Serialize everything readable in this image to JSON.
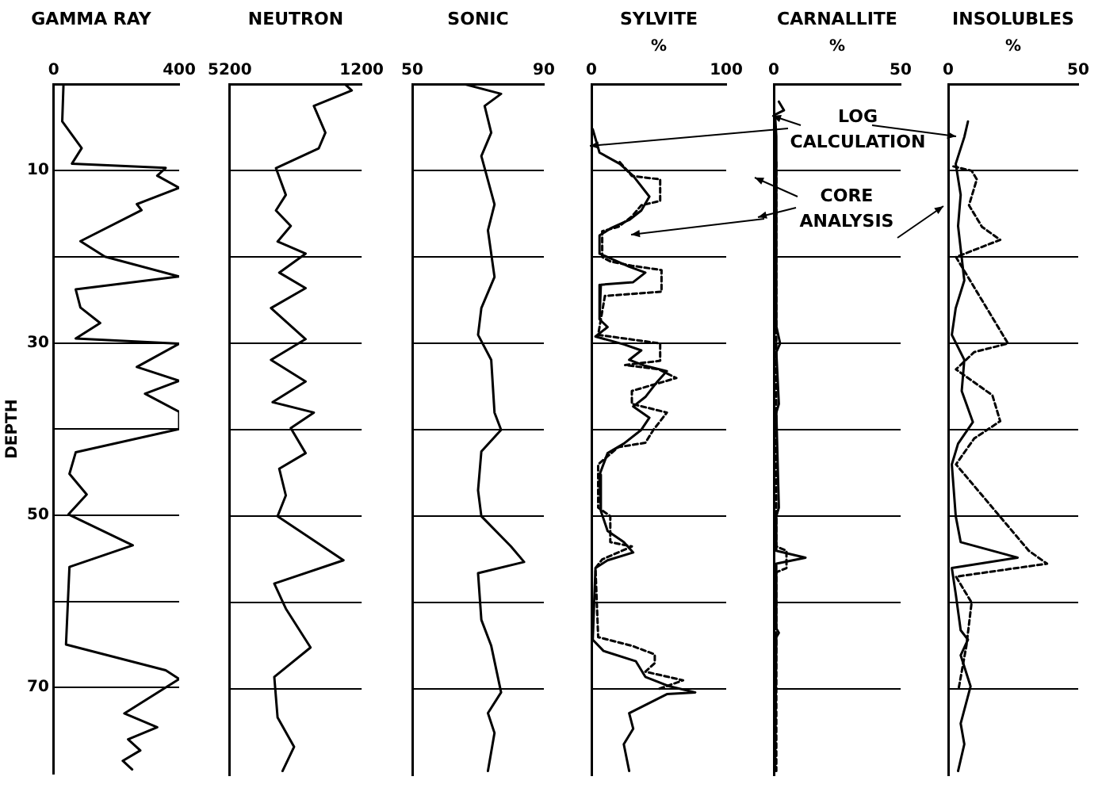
{
  "chart_data": [
    {
      "type": "line",
      "orientation": "horizontal",
      "title": "GAMMA RAY",
      "ylabel": "DEPTH",
      "xlim": [
        0,
        400
      ],
      "xticks": [
        0,
        400
      ],
      "ylim": [
        80,
        0
      ],
      "yticks": [
        10,
        {
          "value": 20,
          "label": null
        },
        30,
        {
          "value": 40,
          "label": null
        },
        50,
        {
          "value": 60,
          "label": null
        },
        70
      ],
      "grid": "y",
      "series": [
        {
          "color": "#000000",
          "x": [
            0,
            4.3,
            7.4,
            9.2,
            9.7,
            10.6,
            12,
            13.9,
            14.6,
            18.2,
            20,
            22.3,
            23.8,
            25.9,
            27.7,
            29.5,
            30.1,
            32.8,
            34.4,
            35.9,
            38,
            40,
            42.7,
            45.2,
            47.6,
            49.9,
            53.5,
            56,
            65,
            68,
            69,
            73,
            74.6,
            76,
            77.3,
            78.5,
            79.5
          ],
          "values": [
            31,
            27,
            89,
            58,
            357,
            330,
            400,
            265,
            280,
            85,
            163,
            400,
            70,
            85,
            148,
            70,
            400,
            265,
            400,
            291,
            400,
            400,
            70,
            50,
            105,
            47,
            252,
            50,
            39,
            357,
            400,
            225,
            330,
            237,
            276,
            220,
            250
          ]
        }
      ]
    },
    {
      "type": "line",
      "orientation": "horizontal",
      "title": "NEUTRON",
      "xlim": [
        5200,
        1200
      ],
      "xticks": [
        5200,
        1200
      ],
      "ylim": [
        80,
        0
      ],
      "yticks": [
        10,
        {
          "value": 20,
          "label": null
        },
        30,
        {
          "value": 40,
          "label": null
        },
        50,
        {
          "value": 60,
          "label": null
        },
        70
      ],
      "grid": "y",
      "tick_labels": "x",
      "series": [
        {
          "color": "#000000",
          "x": [
            0,
            0.7,
            2.5,
            5.6,
            7.4,
            9.7,
            12.8,
            14.6,
            16.4,
            18.2,
            19.6,
            21.8,
            23.6,
            25.9,
            29.5,
            31.9,
            34.4,
            36.8,
            38,
            39.8,
            42.7,
            44.5,
            47.6,
            50,
            55.1,
            57.8,
            60.7,
            65.2,
            68.6,
            73.3,
            76.7,
            79.5
          ],
          "values": [
            1700,
            1500,
            2650,
            2300,
            2500,
            3800,
            3500,
            3800,
            3350,
            3750,
            2900,
            3700,
            2900,
            3950,
            2900,
            3950,
            2900,
            3900,
            2650,
            3350,
            2900,
            3700,
            3500,
            3750,
            1750,
            3850,
            3500,
            2750,
            3850,
            3750,
            3250,
            3600
          ]
        }
      ]
    },
    {
      "type": "line",
      "orientation": "horizontal",
      "title": "SONIC",
      "xlim": [
        50,
        90
      ],
      "xticks": [
        50,
        90
      ],
      "ylim": [
        80,
        0
      ],
      "yticks": [
        10,
        {
          "value": 20,
          "label": null
        },
        30,
        {
          "value": 40,
          "label": null
        },
        50,
        {
          "value": 60,
          "label": null
        },
        70
      ],
      "grid": "y",
      "tick_labels": "x",
      "series": [
        {
          "color": "#000000",
          "x": [
            0,
            1.1,
            2.5,
            5.6,
            8.3,
            13.9,
            16.9,
            22.3,
            25.9,
            29,
            31.9,
            38,
            40,
            42.5,
            47,
            50,
            53.5,
            55.3,
            56.6,
            62,
            65,
            70.4,
            72.8,
            75.1,
            79.5
          ],
          "values": [
            66,
            77,
            72,
            74,
            71,
            75,
            73,
            75,
            71,
            70,
            74,
            75,
            77,
            71,
            70,
            71,
            80,
            84,
            70,
            71,
            74,
            77,
            73,
            75,
            73
          ]
        }
      ]
    },
    {
      "type": "line",
      "orientation": "horizontal",
      "title": "SYLVITE",
      "xlabel": "%",
      "xlim": [
        0,
        100
      ],
      "xticks": [
        0,
        100
      ],
      "ylim": [
        80,
        0
      ],
      "yticks": [
        10,
        {
          "value": 20,
          "label": null
        },
        30,
        {
          "value": 40,
          "label": null
        },
        50,
        {
          "value": 60,
          "label": null
        },
        70
      ],
      "grid": "y",
      "tick_labels": "x",
      "series": [
        {
          "color": "#000000",
          "x": [
            5.2,
            7.9,
            9.2,
            10.6,
            13,
            14.6,
            15.7,
            16.6,
            17.5,
            19.6,
            21.1,
            21.8,
            22.9,
            23.2,
            27.2,
            28.1,
            29.2,
            30.1,
            30.8,
            31.9,
            32.6,
            33.2,
            34.4,
            36.2,
            37.3,
            38.6,
            40,
            41.6,
            42.7,
            45.2,
            49.4,
            51.7,
            53,
            54.2,
            55.1,
            56,
            64.3,
            65.6,
            66.8,
            68.6,
            69.7,
            70.4,
            70.6,
            72.8,
            74.6,
            76.4,
            79.5
          ],
          "values": [
            1,
            6,
            21,
            31,
            43,
            37,
            28,
            15,
            6,
            6,
            28,
            40,
            31,
            7,
            6,
            12,
            3,
            24,
            37,
            28,
            40,
            56,
            49,
            40,
            31,
            43,
            37,
            24,
            12,
            6,
            7,
            12,
            24,
            31,
            12,
            3,
            1,
            9,
            33,
            40,
            58,
            77,
            56,
            28,
            31,
            24,
            28
          ]
        },
        {
          "color": "#000000",
          "line_style": "dashed",
          "x": [
            9,
            10.6,
            11,
            13.5,
            14,
            15.3,
            16.5,
            17,
            20,
            20.5,
            21,
            21.5,
            24,
            24.5,
            29,
            30,
            32,
            32.5,
            33,
            34,
            35.5,
            37,
            38,
            40,
            41.5,
            42,
            44,
            49,
            50,
            53,
            53.5,
            55,
            56,
            64,
            65,
            66,
            67,
            68,
            69,
            70
          ],
          "values": [
            21,
            30,
            51,
            51,
            37,
            30,
            20,
            8,
            8,
            14,
            30,
            52,
            52,
            10,
            5,
            51,
            51,
            25,
            50,
            63,
            30,
            30,
            56,
            46,
            40,
            20,
            5,
            5,
            14,
            14,
            30,
            8,
            3,
            5,
            30,
            47,
            47,
            40,
            68,
            50
          ]
        }
      ]
    },
    {
      "type": "line",
      "orientation": "horizontal",
      "title": "CARNALLITE",
      "xlabel": "%",
      "xlim": [
        0,
        50
      ],
      "xticks": [
        0,
        50
      ],
      "ylim": [
        80,
        0
      ],
      "yticks": [
        10,
        {
          "value": 20,
          "label": null
        },
        30,
        {
          "value": 40,
          "label": null
        },
        50,
        {
          "value": 60,
          "label": null
        },
        70
      ],
      "grid": "y",
      "tick_labels": "x",
      "annotations": [
        "LOG CALCULATION",
        "CORE ANALYSIS"
      ],
      "series": [
        {
          "color": "#000000",
          "x": [
            2,
            3,
            3.5,
            6,
            20,
            28,
            30,
            31,
            37,
            38,
            49,
            50,
            54,
            54.8,
            55.5,
            63,
            63.5,
            64,
            79.5
          ],
          "values": [
            2,
            4,
            0.5,
            1,
            1,
            1,
            2.5,
            1,
            2,
            1,
            2,
            1,
            1,
            12.5,
            1,
            1,
            2,
            1,
            0.5
          ]
        },
        {
          "color": "#000000",
          "line_style": "dashed",
          "x": [
            9,
            53.5,
            54,
            56,
            56.5,
            79.5
          ],
          "values": [
            1,
            1,
            5,
            5,
            1,
            1
          ]
        }
      ]
    },
    {
      "type": "line",
      "orientation": "horizontal",
      "title": "INSOLUBLES",
      "xlabel": "%",
      "xlim": [
        0,
        50
      ],
      "xticks": [
        0,
        50
      ],
      "ylim": [
        80,
        0
      ],
      "yticks": [
        10,
        {
          "value": 20,
          "label": null
        },
        30,
        {
          "value": 40,
          "label": null
        },
        50,
        {
          "value": 60,
          "label": null
        },
        70
      ],
      "grid": "y",
      "tick_labels": "x",
      "series": [
        {
          "color": "#000000",
          "x": [
            4.3,
            6.1,
            9.2,
            12.8,
            16.4,
            22.7,
            25.9,
            29,
            31.9,
            35.5,
            39.1,
            41.6,
            44,
            50,
            53,
            54.8,
            56,
            59,
            63.2,
            64.3,
            66.1,
            69.7,
            74,
            76.4,
            79.5
          ],
          "values": [
            7.6,
            6.2,
            2.9,
            4.8,
            3.8,
            6.2,
            2.9,
            1.4,
            6.2,
            5.2,
            9.5,
            3.8,
            1.4,
            2.9,
            4.8,
            26.7,
            1.4,
            2.9,
            4.8,
            7.6,
            4.8,
            8.6,
            4.8,
            6.2,
            3.8
          ]
        },
        {
          "color": "#000000",
          "line_style": "dashed",
          "x": [
            9.5,
            10,
            11,
            14,
            16.5,
            18,
            20,
            30,
            31,
            33,
            36,
            39,
            41,
            44,
            54,
            55.5,
            57,
            60,
            65,
            70
          ],
          "values": [
            2,
            9,
            11,
            8,
            13,
            20,
            3,
            23,
            10,
            3,
            17,
            20,
            10,
            3,
            31,
            38,
            3,
            9,
            7,
            4
          ]
        }
      ]
    }
  ]
}
